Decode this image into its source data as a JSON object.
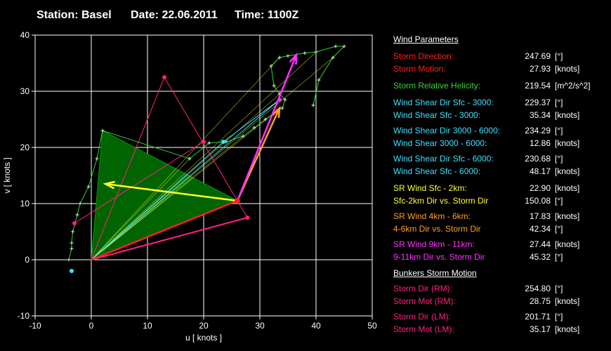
{
  "header": {
    "station": "Station: Basel",
    "date": "Date: 22.06.2011",
    "time": "Time: 1100Z"
  },
  "panel": {
    "heading_wind": "Wind Parameters",
    "heading_bunkers": "Bunkers Storm Motion",
    "wind_rows": [
      {
        "label": "Storm Direction:",
        "value": "247.69",
        "unit": "[°]",
        "color": "#ff2020"
      },
      {
        "label": "Storm Motion:",
        "value": "27.93",
        "unit": "[knots]",
        "color": "#ff2020"
      },
      {
        "label": "Storm Relative Helicity:",
        "value": "219.54",
        "unit": "[m^2/s^2]",
        "color": "#40d040"
      },
      {
        "label": "Wind Shear Dir Sfc - 3000:",
        "value": "229.37",
        "unit": "[°]",
        "color": "#40e0ff"
      },
      {
        "label": "Wind Shear Sfc - 3000:",
        "value": "35.34",
        "unit": "[knots]",
        "color": "#40e0ff"
      },
      {
        "label": "Wind Shear Dir 3000 - 6000:",
        "value": "234.29",
        "unit": "[°]",
        "color": "#40e0ff"
      },
      {
        "label": "Wind Shear 3000 - 6000:",
        "value": "12.86",
        "unit": "[knots]",
        "color": "#40e0ff"
      },
      {
        "label": "Wind Shear Dir Sfc - 6000:",
        "value": "230.68",
        "unit": "[°]",
        "color": "#40e0ff"
      },
      {
        "label": "Wind Shear Sfc - 6000:",
        "value": "48.17",
        "unit": "[knots]",
        "color": "#40e0ff"
      },
      {
        "label": "SR Wind Sfc - 2km:",
        "value": "22.90",
        "unit": "[knots]",
        "color": "#ffff30"
      },
      {
        "label": "Sfc-2km Dir vs. Storm Dir",
        "value": "150.08",
        "unit": "[°]",
        "color": "#ffff30"
      },
      {
        "label": "SR Wind 4km - 6km:",
        "value": "17.83",
        "unit": "[knots]",
        "color": "#ffa020"
      },
      {
        "label": "4-6km Dir vs. Storm Dir",
        "value": "42.34",
        "unit": "[°]",
        "color": "#ffa020"
      },
      {
        "label": "SR Wind 9km - 11km:",
        "value": "27.44",
        "unit": "[knots]",
        "color": "#ff30ff"
      },
      {
        "label": "9-11km Dir vs. Storm Dir",
        "value": "45.32",
        "unit": "[°]",
        "color": "#ff30ff"
      }
    ],
    "bunkers_rows": [
      {
        "label": "Storm Dir (RM):",
        "value": "254.80",
        "unit": "[°]",
        "color": "#ff2080"
      },
      {
        "label": "Storm Mot (RM):",
        "value": "28.75",
        "unit": "[knots]",
        "color": "#ff2080"
      },
      {
        "label": "Storm Dir (LM):",
        "value": "201.71",
        "unit": "[°]",
        "color": "#ff2080"
      },
      {
        "label": "Storm Mot (LM):",
        "value": "35.17",
        "unit": "[knots]",
        "color": "#ff2080"
      }
    ]
  },
  "chart_data": {
    "type": "scatter",
    "xlabel": "u  [ knots ]",
    "ylabel": "v  [ knots ]",
    "xlim": [
      -10,
      50
    ],
    "ylim": [
      -10,
      40
    ],
    "xticks": [
      -10,
      0,
      10,
      20,
      30,
      40,
      50
    ],
    "yticks": [
      -10,
      0,
      10,
      20,
      30,
      40
    ],
    "grid": true,
    "hodograph": [
      [
        -4,
        0
      ],
      [
        -3.5,
        2
      ],
      [
        -3.5,
        3
      ],
      [
        -3.3,
        5
      ],
      [
        -2.5,
        8
      ],
      [
        -2,
        10
      ],
      [
        -0.5,
        13
      ],
      [
        1,
        18
      ],
      [
        2,
        23
      ],
      [
        17.5,
        18
      ],
      [
        21,
        20.8
      ],
      [
        24,
        21
      ],
      [
        27,
        22
      ],
      [
        29,
        23.5
      ],
      [
        31,
        25
      ],
      [
        33,
        26.5
      ],
      [
        34,
        27
      ],
      [
        34.5,
        28.5
      ],
      [
        33.5,
        29.5
      ],
      [
        32.5,
        31
      ],
      [
        32,
        34.5
      ],
      [
        33.5,
        36
      ],
      [
        35,
        36.3
      ],
      [
        38,
        36.8
      ],
      [
        40,
        37
      ],
      [
        43.5,
        38
      ],
      [
        45,
        38
      ],
      [
        43,
        36
      ],
      [
        40.5,
        32
      ],
      [
        39.5,
        27.5
      ]
    ],
    "storm_motion": [
      26,
      10.5
    ],
    "storm_motion_color": "#ff2020",
    "sfc_to_storm_triangle": [
      [
        0,
        0
      ],
      [
        2,
        23
      ],
      [
        26,
        10.5
      ]
    ],
    "triangle_color": "#006400",
    "shear_vectors": [
      {
        "from": [
          0,
          0
        ],
        "to": [
          23.5,
          21
        ],
        "color": "#40e0ff"
      },
      {
        "from": [
          0,
          0
        ],
        "to": [
          33.5,
          28.5
        ],
        "color": "#40e0ff"
      },
      {
        "from": [
          23.5,
          21
        ],
        "to": [
          33.5,
          28.5
        ],
        "color": "#40e0ff"
      }
    ],
    "sr_vectors": [
      {
        "from": [
          26,
          10.5
        ],
        "to": [
          2.5,
          13.5
        ],
        "color": "#ffff30"
      },
      {
        "from": [
          26,
          10.5
        ],
        "to": [
          33.5,
          27
        ],
        "color": "#ffa020"
      },
      {
        "from": [
          26,
          10.5
        ],
        "to": [
          36.5,
          36.5
        ],
        "color": "#ff30ff"
      }
    ],
    "bunkers": {
      "rm": [
        27.8,
        7.5
      ],
      "lm": [
        13,
        32.5
      ],
      "color": "#ff2080"
    },
    "extra_points": [
      {
        "pos": [
          -3.5,
          -2
        ],
        "color": "#40e0ff"
      },
      {
        "pos": [
          23.5,
          21
        ],
        "color": "#40e0ff"
      },
      {
        "pos": [
          20,
          21
        ],
        "color": "#ff2080"
      },
      {
        "pos": [
          -3,
          6.5
        ],
        "color": "#ff2080"
      },
      {
        "pos": [
          33.5,
          28.5
        ],
        "color": "#ff30ff"
      }
    ]
  }
}
